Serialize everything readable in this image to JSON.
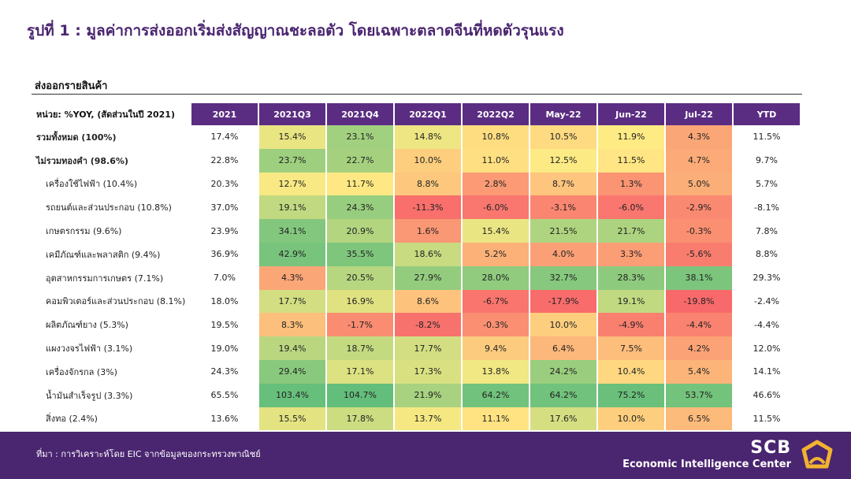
{
  "title": "รูปที่ 1 : มูลค่าการส่งออกเริ่มส่งสัญญาณชะลอตัว โดยเฉพาะตลาดจีนที่หดตัวรุนแรง",
  "section_title": "ส่งออกรายสินค้า",
  "chart_data": {
    "type": "table",
    "unit_label": "หน่วย: %YOY, (สัดส่วนในปี 2021)",
    "columns": [
      "2021",
      "2021Q3",
      "2021Q4",
      "2022Q1",
      "2022Q2",
      "May-22",
      "Jun-22",
      "Jul-22",
      "YTD"
    ],
    "heatmap_columns": [
      "2021Q3",
      "2021Q4",
      "2022Q1",
      "2022Q2",
      "May-22",
      "Jun-22",
      "Jul-22"
    ],
    "color_scale": {
      "low": "#f8696b",
      "mid": "#ffeb84",
      "high": "#63be7b"
    },
    "rows": [
      {
        "label": "รวมทั้งหมด (100%)",
        "bold": true,
        "values": [
          17.4,
          15.4,
          23.1,
          14.8,
          10.8,
          10.5,
          11.9,
          4.3,
          11.5
        ]
      },
      {
        "label": "ไม่รวมทองคำ (98.6%)",
        "bold": true,
        "values": [
          22.8,
          23.7,
          22.7,
          10.0,
          11.0,
          12.5,
          11.5,
          4.7,
          9.7
        ]
      },
      {
        "label": "เครื่องใช้ไฟฟ้า (10.4%)",
        "bold": false,
        "values": [
          20.3,
          12.7,
          11.7,
          8.8,
          2.8,
          8.7,
          1.3,
          5.0,
          5.7
        ]
      },
      {
        "label": "รถยนต์และส่วนประกอบ (10.8%)",
        "bold": false,
        "values": [
          37.0,
          19.1,
          24.3,
          -11.3,
          -6.0,
          -3.1,
          -6.0,
          -2.9,
          -8.1
        ]
      },
      {
        "label": "เกษตรกรรม (9.6%)",
        "bold": false,
        "values": [
          23.9,
          34.1,
          20.9,
          1.6,
          15.4,
          21.5,
          21.7,
          -0.3,
          7.8
        ]
      },
      {
        "label": "เคมีภัณฑ์และพลาสติก (9.4%)",
        "bold": false,
        "values": [
          36.9,
          42.9,
          35.5,
          18.6,
          5.2,
          4.0,
          3.3,
          -5.6,
          8.8
        ]
      },
      {
        "label": "อุตสาหกรรมการเกษตร (7.1%)",
        "bold": false,
        "values": [
          7.0,
          4.3,
          20.5,
          27.9,
          28.0,
          32.7,
          28.3,
          38.1,
          29.3
        ]
      },
      {
        "label": "คอมพิวเตอร์และส่วนประกอบ (8.1%)",
        "bold": false,
        "values": [
          18.0,
          17.7,
          16.9,
          8.6,
          -6.7,
          -17.9,
          19.1,
          -19.8,
          -2.4
        ]
      },
      {
        "label": "ผลิตภัณฑ์ยาง (5.3%)",
        "bold": false,
        "values": [
          19.5,
          8.3,
          -1.7,
          -8.2,
          -0.3,
          10.0,
          -4.9,
          -4.4,
          -4.4
        ]
      },
      {
        "label": "แผงวงจรไฟฟ้า (3.1%)",
        "bold": false,
        "values": [
          19.0,
          19.4,
          18.7,
          17.7,
          9.4,
          6.4,
          7.5,
          4.2,
          12.0
        ]
      },
      {
        "label": "เครื่องจักรกล (3%)",
        "bold": false,
        "values": [
          24.3,
          29.4,
          17.1,
          17.3,
          13.8,
          24.2,
          10.4,
          5.4,
          14.1
        ]
      },
      {
        "label": "น้ำมันสำเร็จรูป (3.3%)",
        "bold": false,
        "values": [
          65.5,
          103.4,
          104.7,
          21.9,
          64.2,
          64.2,
          75.2,
          53.7,
          46.6
        ]
      },
      {
        "label": "สิ่งทอ (2.4%)",
        "bold": false,
        "values": [
          13.6,
          15.5,
          17.8,
          13.7,
          11.1,
          17.6,
          10.0,
          6.5,
          11.5
        ]
      }
    ]
  },
  "footer": {
    "source": "ที่มา : การวิเคราะห์โดย EIC จากข้อมูลของกระทรวงพาณิชย์",
    "brand": "SCB",
    "brand_sub": "Economic Intelligence Center",
    "bg_color": "#4a2570"
  }
}
